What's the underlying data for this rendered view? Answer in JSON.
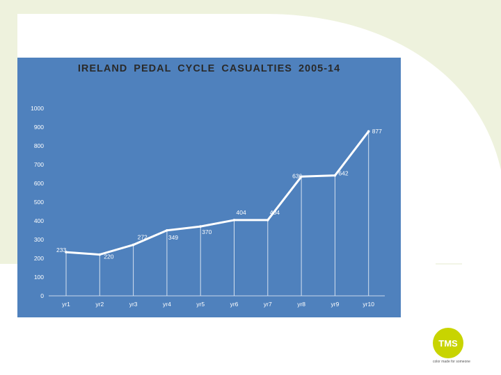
{
  "colors": {
    "background": "#ffffff",
    "decor": "#eef2dd",
    "panel": "#4f81bd",
    "line": "#ffffff",
    "logo": "#c8d400"
  },
  "chart_data": {
    "type": "line",
    "title": "IRELAND PEDAL CYCLE CASUALTIES 2005-14",
    "categories": [
      "yr1",
      "yr2",
      "yr3",
      "yr4",
      "yr5",
      "yr6",
      "yr7",
      "yr8",
      "yr9",
      "yr10"
    ],
    "values": [
      233,
      220,
      272,
      349,
      370,
      404,
      404,
      636,
      642,
      877
    ],
    "data_labels": [
      "233",
      "220",
      "272",
      "349",
      "370",
      "404",
      "404",
      "636",
      "642",
      "877"
    ],
    "ylim": [
      0,
      1000
    ],
    "yticks": [
      "0",
      "100",
      "200",
      "300",
      "400",
      "500",
      "600",
      "700",
      "800",
      "900",
      "1000"
    ],
    "grid": false,
    "drop_lines": true,
    "legend": "none"
  },
  "logo": {
    "text": "TMS",
    "tagline": "color made for someone"
  }
}
